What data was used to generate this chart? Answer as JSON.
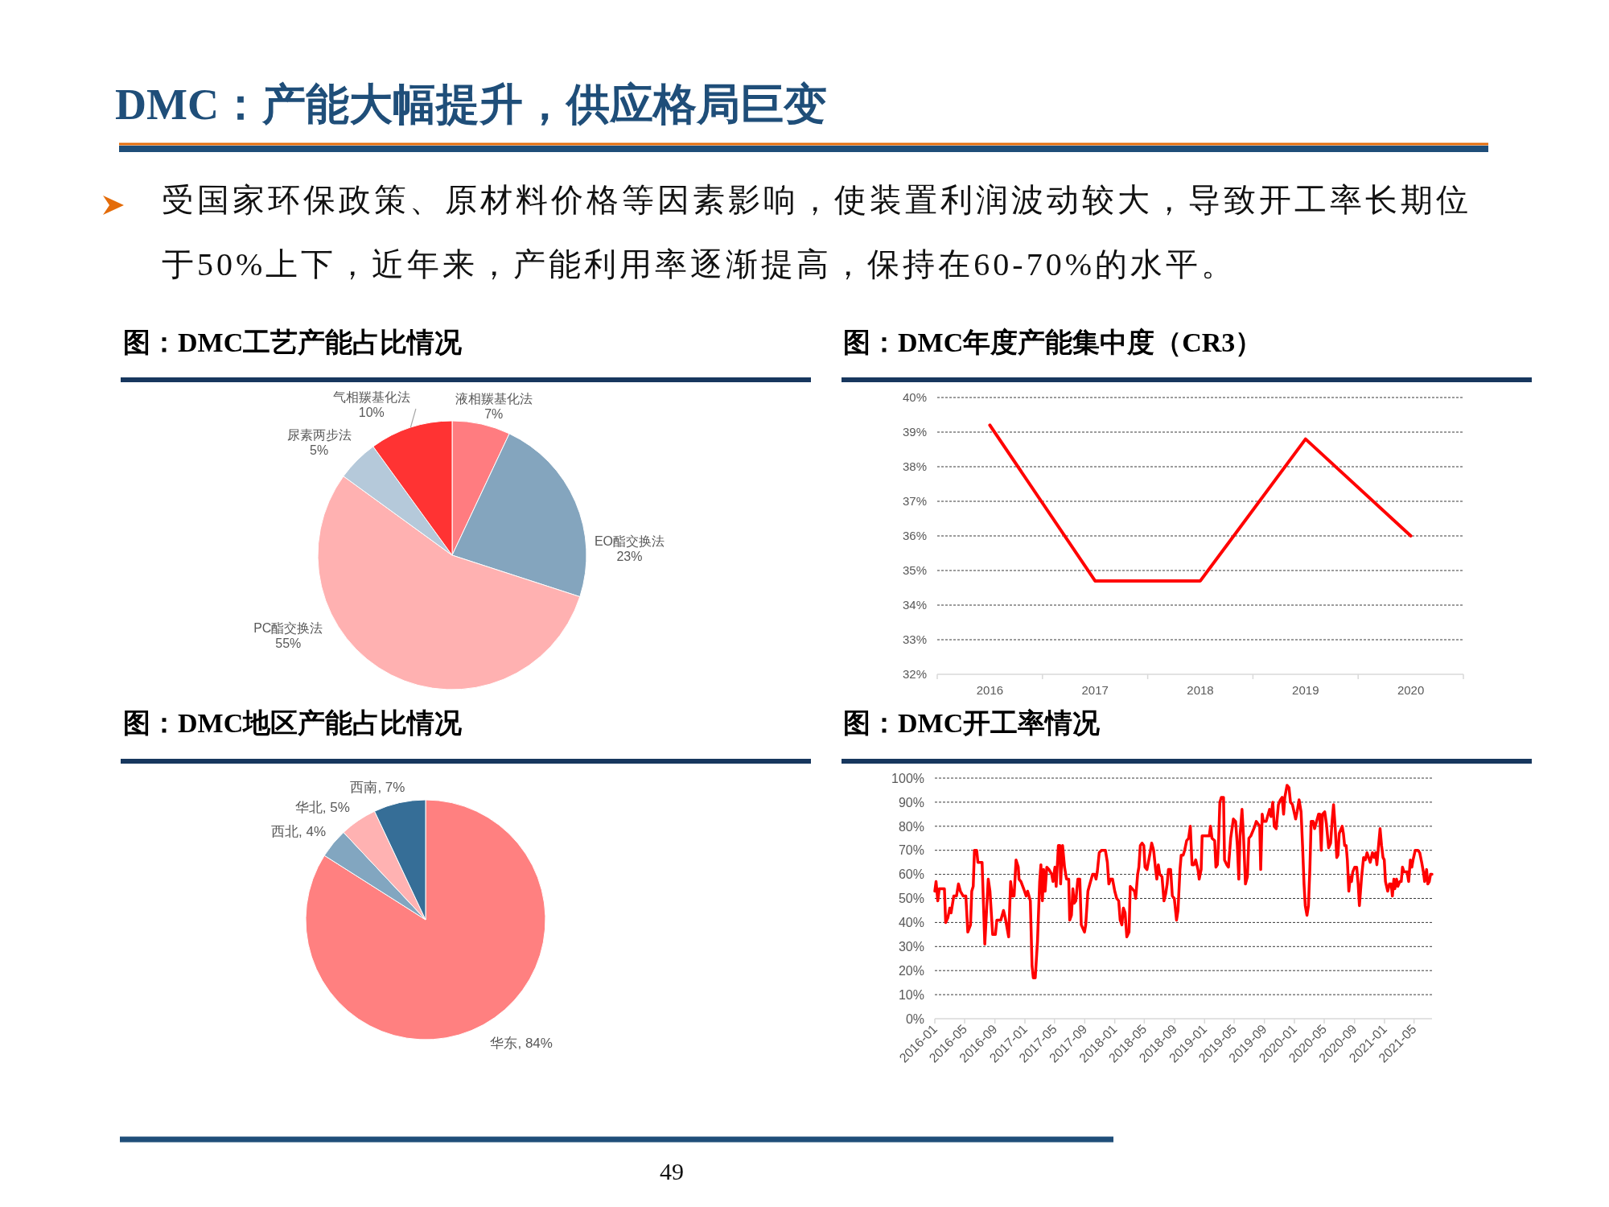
{
  "chart_data": [
    {
      "type": "other",
      "title": "DMC：产能大幅提升，供应格局巨变",
      "annotations": [
        "受国家环保政策、原材料价格等因素影响，使装置利润波动较大，导致开工率长期位于50%上下，近年来，产能利用率逐渐提高，保持在60-70%的水平。",
        "49"
      ]
    },
    {
      "type": "pie",
      "title": "图：DMC工艺产能占比情况",
      "categories": [
        "液相羰基化法",
        "EO酯交换法",
        "PC酯交换法",
        "尿素两步法",
        "气相羰基化法"
      ],
      "values": [
        7,
        23,
        55,
        5,
        10
      ],
      "colors": [
        "#ff7c80",
        "#84a5be",
        "#ffb1b1",
        "#b5c9da",
        "#ff3333"
      ],
      "value_labels": [
        "7%",
        "23%",
        "55%",
        "5%",
        "10%"
      ]
    },
    {
      "type": "line",
      "title": "图：DMC年度产能集中度（CR3）",
      "categories": [
        "2016",
        "2017",
        "2018",
        "2019",
        "2020"
      ],
      "series": [
        {
          "color": "#ff0000",
          "values": [
            39.2,
            34.7,
            34.7,
            38.8,
            36.0
          ]
        }
      ],
      "ylim": [
        32,
        40
      ],
      "yticks": [
        {
          "value": 32,
          "label": "32%"
        },
        {
          "value": 33,
          "label": "33%"
        },
        {
          "value": 34,
          "label": "34%"
        },
        {
          "value": 35,
          "label": "35%"
        },
        {
          "value": 36,
          "label": "36%"
        },
        {
          "value": 37,
          "label": "37%"
        },
        {
          "value": 38,
          "label": "38%"
        },
        {
          "value": 39,
          "label": "39%"
        },
        {
          "value": 40,
          "label": "40%"
        }
      ],
      "grid": "y"
    },
    {
      "type": "pie",
      "title": "图：DMC地区产能占比情况",
      "categories": [
        "华东",
        "西北",
        "华北",
        "西南"
      ],
      "values": [
        84,
        4,
        5,
        7
      ],
      "colors": [
        "#ff8080",
        "#82a6c0",
        "#ffb2b2",
        "#366e97"
      ],
      "value_labels": [
        "84%",
        "4%",
        "5%",
        "7%"
      ]
    },
    {
      "type": "line",
      "title": "图：DMC开工率情况",
      "x": [
        "2016-01-01",
        "2016-01-06",
        "2016-01-13",
        "2016-01-19",
        "2016-02-09",
        "2016-02-14",
        "2016-02-23",
        "2016-03-02",
        "2016-03-07",
        "2016-03-18",
        "2016-03-29",
        "2016-04-06",
        "2016-04-14",
        "2016-04-25",
        "2016-05-06",
        "2016-05-14",
        "2016-05-25",
        "2016-05-30",
        "2016-06-05",
        "2016-06-10",
        "2016-06-19",
        "2016-06-24",
        "2016-07-11",
        "2016-07-22",
        "2016-08-05",
        "2016-08-12",
        "2016-08-23",
        "2016-09-03",
        "2016-09-09",
        "2016-09-25",
        "2016-10-06",
        "2016-10-13",
        "2016-10-27",
        "2016-11-04",
        "2016-11-11",
        "2016-11-18",
        "2016-11-26",
        "2016-12-05",
        "2016-12-08",
        "2016-12-16",
        "2016-12-27",
        "2017-01-06",
        "2017-01-12",
        "2017-01-23",
        "2017-01-30",
        "2017-02-04",
        "2017-02-12",
        "2017-02-21",
        "2017-03-02",
        "2017-03-07",
        "2017-03-13",
        "2017-03-18",
        "2017-03-24",
        "2017-03-31",
        "2017-04-09",
        "2017-04-20",
        "2017-04-25",
        "2017-05-03",
        "2017-05-08",
        "2017-05-17",
        "2017-05-23",
        "2017-05-26",
        "2017-06-03",
        "2017-06-11",
        "2017-06-19",
        "2017-06-28",
        "2017-07-02",
        "2017-07-09",
        "2017-07-15",
        "2017-07-20",
        "2017-07-27",
        "2017-08-04",
        "2017-08-12",
        "2017-08-18",
        "2017-08-31",
        "2017-09-05",
        "2017-09-14",
        "2017-09-22",
        "2017-10-03",
        "2017-10-11",
        "2017-10-17",
        "2017-10-22",
        "2017-10-30",
        "2017-11-08",
        "2017-11-24",
        "2017-12-02",
        "2017-12-08",
        "2017-12-15",
        "2017-12-23",
        "2018-01-01",
        "2018-01-09",
        "2018-01-17",
        "2018-01-23",
        "2018-01-30",
        "2018-02-05",
        "2018-02-12",
        "2018-02-19",
        "2018-02-28",
        "2018-03-05",
        "2018-03-22",
        "2018-03-27",
        "2018-04-04",
        "2018-04-09",
        "2018-04-15",
        "2018-04-22",
        "2018-04-29",
        "2018-05-04",
        "2018-05-12",
        "2018-05-23",
        "2018-05-31",
        "2018-06-08",
        "2018-06-16",
        "2018-06-21",
        "2018-06-27",
        "2018-07-03",
        "2018-07-12",
        "2018-07-20",
        "2018-07-27",
        "2018-08-02",
        "2018-08-07",
        "2018-08-16",
        "2018-08-23",
        "2018-08-31",
        "2018-09-09",
        "2018-09-15",
        "2018-09-23",
        "2018-09-28",
        "2018-10-06",
        "2018-10-12",
        "2018-10-20",
        "2018-10-28",
        "2018-11-04",
        "2018-11-11",
        "2018-11-19",
        "2018-11-26",
        "2018-12-05",
        "2018-12-10",
        "2018-12-18",
        "2018-12-22",
        "2018-12-29",
        "2019-01-20",
        "2019-01-25",
        "2019-01-31",
        "2019-02-11",
        "2019-02-16",
        "2019-02-22",
        "2019-02-27",
        "2019-03-04",
        "2019-03-10",
        "2019-03-19",
        "2019-03-23",
        "2019-04-01",
        "2019-04-08",
        "2019-04-17",
        "2019-04-28",
        "2019-05-07",
        "2019-05-14",
        "2019-05-20",
        "2019-05-25",
        "2019-06-02",
        "2019-06-08",
        "2019-06-16",
        "2019-06-24",
        "2019-06-30",
        "2019-07-08",
        "2019-07-24",
        "2019-07-30",
        "2019-08-13",
        "2019-08-17",
        "2019-08-23",
        "2019-08-28",
        "2019-09-08",
        "2019-09-22",
        "2019-09-28",
        "2019-10-05",
        "2019-10-11",
        "2019-10-19",
        "2019-10-28",
        "2019-11-05",
        "2019-11-12",
        "2019-11-18",
        "2019-11-23",
        "2019-12-02",
        "2019-12-10",
        "2019-12-16",
        "2019-12-24",
        "2020-01-06",
        "2020-01-12",
        "2020-01-20",
        "2020-01-28",
        "2020-02-03",
        "2020-02-09",
        "2020-02-14",
        "2020-02-21",
        "2020-02-27",
        "2020-03-04",
        "2020-03-09",
        "2020-03-17",
        "2020-03-23",
        "2020-04-08",
        "2020-04-13",
        "2020-04-19",
        "2020-04-24",
        "2020-05-03",
        "2020-05-10",
        "2020-05-19",
        "2020-05-27",
        "2020-06-02",
        "2020-06-08",
        "2020-06-15",
        "2020-06-21",
        "2020-06-26",
        "2020-07-01",
        "2020-07-13",
        "2020-07-18",
        "2020-07-23",
        "2020-07-29",
        "2020-08-03",
        "2020-08-09",
        "2020-08-15",
        "2020-08-20",
        "2020-08-25",
        "2020-09-02",
        "2020-09-10",
        "2020-09-16",
        "2020-09-21",
        "2020-09-30",
        "2020-10-08",
        "2020-10-15",
        "2020-10-22",
        "2020-11-04",
        "2020-11-13",
        "2020-11-20",
        "2020-11-26",
        "2020-12-01",
        "2020-12-07",
        "2020-12-14",
        "2020-12-20",
        "2020-12-26",
        "2020-12-31",
        "2021-01-05",
        "2021-01-14",
        "2021-01-21",
        "2021-01-28",
        "2021-02-02",
        "2021-02-08",
        "2021-02-12",
        "2021-02-19",
        "2021-02-24",
        "2021-03-04",
        "2021-03-10",
        "2021-03-15",
        "2021-03-21",
        "2021-04-03",
        "2021-04-09",
        "2021-04-16",
        "2021-04-22",
        "2021-04-27",
        "2021-05-06",
        "2021-05-17",
        "2021-05-24",
        "2021-06-01",
        "2021-06-08",
        "2021-06-13",
        "2021-06-21",
        "2021-06-26",
        "2021-07-02",
        "2021-07-07",
        "2021-07-13"
      ],
      "series": [
        {
          "color": "#ff0000",
          "values": [
            53,
            57,
            49,
            54,
            54,
            40,
            42,
            46,
            44,
            51,
            51,
            56,
            53,
            51,
            51,
            36,
            39,
            53,
            55,
            70,
            70,
            65,
            65,
            31,
            58,
            53,
            35,
            35,
            41,
            41,
            45,
            42,
            34,
            57,
            51,
            51,
            66,
            63,
            58,
            57,
            54,
            51,
            53,
            49,
            22,
            17,
            17,
            32,
            57,
            64,
            49,
            62,
            53,
            63,
            62,
            60,
            57,
            63,
            55,
            72,
            72,
            56,
            72,
            63,
            58,
            58,
            41,
            43,
            54,
            48,
            49,
            58,
            58,
            39,
            36,
            39,
            53,
            56,
            60,
            60,
            58,
            61,
            69,
            70,
            70,
            65,
            56,
            58,
            58,
            53,
            50,
            49,
            41,
            39,
            46,
            44,
            34,
            36,
            55,
            53,
            50,
            60,
            63,
            72,
            73,
            72,
            63,
            62,
            68,
            73,
            70,
            62,
            58,
            64,
            60,
            59,
            49,
            52,
            56,
            62,
            62,
            51,
            50,
            41,
            45,
            62,
            68,
            68,
            70,
            74,
            75,
            80,
            64,
            64,
            66,
            62,
            58,
            62,
            76,
            76,
            76,
            80,
            75,
            74,
            63,
            64,
            74,
            90,
            92,
            92,
            66,
            64,
            63,
            75,
            83,
            82,
            72,
            58,
            76,
            87,
            76,
            56,
            59,
            75,
            76,
            80,
            82,
            80,
            62,
            85,
            82,
            82,
            87,
            84,
            90,
            80,
            79,
            89,
            91,
            92,
            85,
            92,
            97,
            96,
            90,
            89,
            83,
            86,
            91,
            86,
            72,
            56,
            47,
            43,
            47,
            63,
            82,
            82,
            79,
            85,
            85,
            70,
            85,
            86,
            81,
            71,
            73,
            82,
            89,
            79,
            67,
            68,
            77,
            80,
            77,
            72,
            72,
            66,
            53,
            59,
            57,
            61,
            63,
            63,
            56,
            47,
            59,
            67,
            66,
            69,
            65,
            69,
            67,
            69,
            64,
            71,
            79,
            72,
            67,
            66,
            57,
            53,
            56,
            56,
            51,
            58,
            54,
            58,
            55,
            57,
            57,
            63,
            61,
            61,
            57,
            66,
            63,
            66,
            70,
            70,
            69,
            65,
            61,
            57,
            62,
            56,
            57,
            60,
            60
          ]
        }
      ],
      "xlim": [
        "2016-01",
        "2021-07-13"
      ],
      "xticks": [
        "2016-01",
        "2016-05",
        "2016-09",
        "2017-01",
        "2017-05",
        "2017-09",
        "2018-01",
        "2018-05",
        "2018-09",
        "2019-01",
        "2019-05",
        "2019-09",
        "2020-01",
        "2020-05",
        "2020-09",
        "2021-01",
        "2021-05"
      ],
      "ylim": [
        0,
        100
      ],
      "yticks": [
        {
          "value": 0,
          "label": "0%"
        },
        {
          "value": 10,
          "label": "10%"
        },
        {
          "value": 20,
          "label": "20%"
        },
        {
          "value": 30,
          "label": "30%"
        },
        {
          "value": 40,
          "label": "40%"
        },
        {
          "value": 50,
          "label": "50%"
        },
        {
          "value": 60,
          "label": "60%"
        },
        {
          "value": 70,
          "label": "70%"
        },
        {
          "value": 80,
          "label": "80%"
        },
        {
          "value": 90,
          "label": "90%"
        },
        {
          "value": 100,
          "label": "100%"
        }
      ],
      "grid": "y"
    }
  ]
}
